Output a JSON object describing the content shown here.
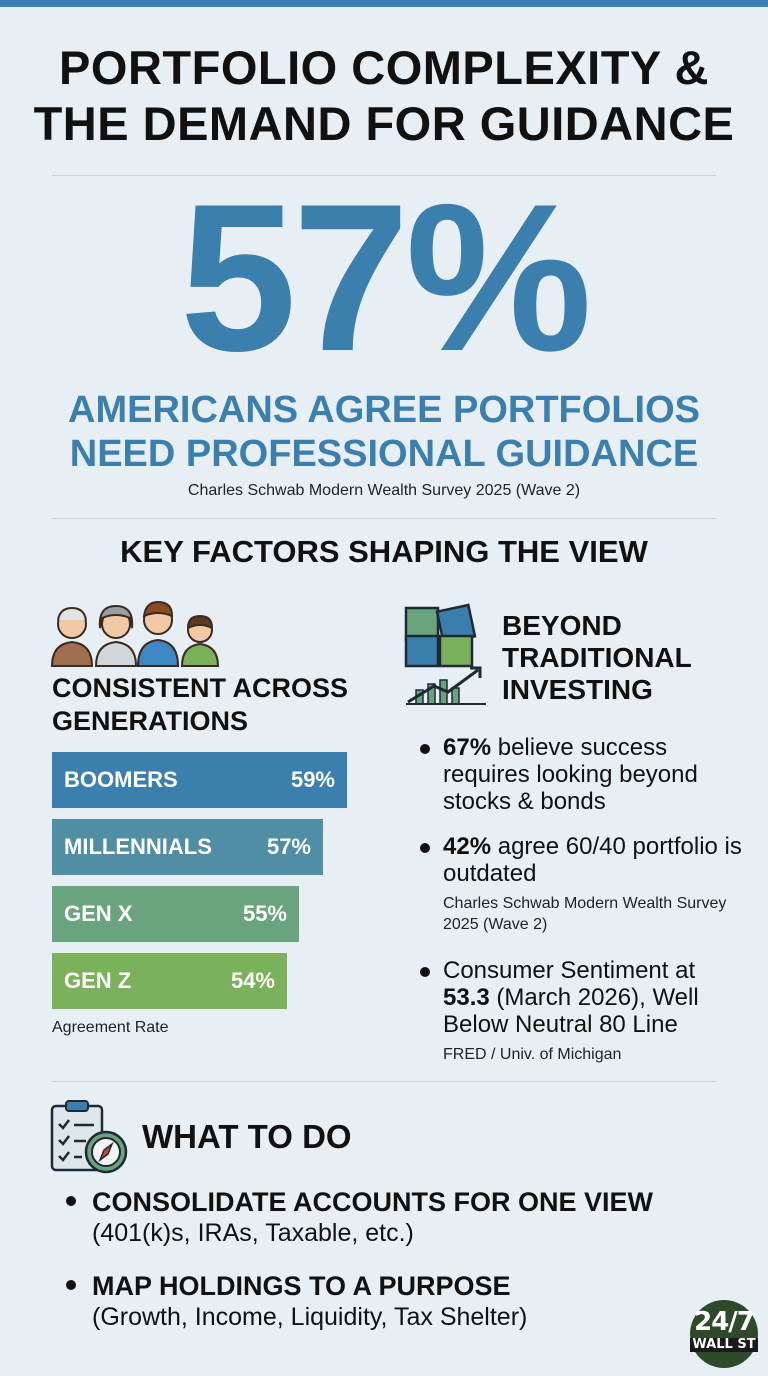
{
  "header": {
    "title_line1": "PORTFOLIO COMPLEXITY &",
    "title_line2": "THE DEMAND FOR GUIDANCE"
  },
  "hero": {
    "stat": "57%",
    "headline_line1": "AMERICANS AGREE PORTFOLIOS",
    "headline_line2": "NEED PROFESSIONAL GUIDANCE",
    "source": "Charles Schwab Modern Wealth Survey 2025 (Wave 2)"
  },
  "section_title": "KEY FACTORS SHAPING THE VIEW",
  "generations": {
    "icon": "people-group-icon",
    "heading_line1": "CONSISTENT ACROSS",
    "heading_line2": "GENERATIONS",
    "footnote": "Agreement Rate"
  },
  "chart_data": {
    "type": "bar",
    "orientation": "horizontal",
    "categories": [
      "BOOMERS",
      "MILLENNIALS",
      "GEN X",
      "GEN Z"
    ],
    "values": [
      59,
      57,
      55,
      54
    ],
    "value_labels": [
      "59%",
      "57%",
      "55%",
      "54%"
    ],
    "colors": [
      "#3b7fae",
      "#4f8ea5",
      "#6aa47e",
      "#7bb15a"
    ],
    "xlabel": "Agreement Rate"
  },
  "beyond": {
    "icon": "puzzle-growth-icon",
    "heading_line1": "BEYOND",
    "heading_line2": "TRADITIONAL",
    "heading_line3": "INVESTING",
    "bullet1_strong": "67%",
    "bullet1_rest": " believe success requires looking beyond stocks & bonds",
    "bullet2_strong": "42%",
    "bullet2_rest": " agree 60/40 portfolio is outdated",
    "bullet2_source": "Charles Schwab Modern Wealth Survey 2025 (Wave 2)",
    "bullet3_pre": "Consumer Sentiment at ",
    "bullet3_strong": "53.3",
    "bullet3_rest": " (March 2026), Well Below Neutral 80 Line",
    "bullet3_source": "FRED / Univ. of Michigan"
  },
  "todo": {
    "icon": "checklist-compass-icon",
    "heading": "WHAT TO DO",
    "item1_main": "CONSOLIDATE ACCOUNTS FOR ONE VIEW",
    "item1_sub": "(401(k)s, IRAs, Taxable, etc.)",
    "item2_main": "MAP HOLDINGS TO A PURPOSE",
    "item2_sub": "(Growth, Income, Liquidity, Tax Shelter)"
  },
  "logo": {
    "top": "24/7",
    "bottom": "WALL ST"
  },
  "colors": {
    "accent": "#3b7fae",
    "background": "#e8eff4"
  }
}
